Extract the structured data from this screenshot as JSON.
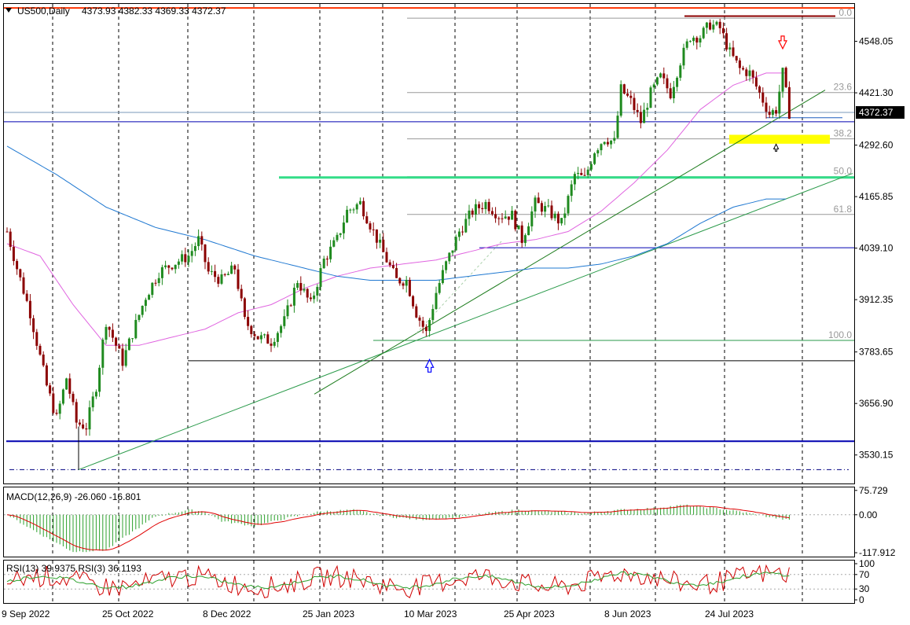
{
  "header": {
    "arrow_icon": "triangle-down-icon",
    "symbol": "US500,Daily",
    "ohlc": "4373.93 4382.33 4369.33 4372.37"
  },
  "colors": {
    "background": "#ffffff",
    "bull": "#1f8a1f",
    "bear": "#8b0000",
    "ma_fast": "#e064e0",
    "ma_slow": "#1f78d1",
    "fib": "#999999",
    "macd_hist": "#2ca02c",
    "macd_signal": "#e00000",
    "rsi_fast": "#d00000",
    "rsi_slow": "#2ca02c",
    "highlight": "#ffff00",
    "support_line": "#0000b0",
    "green_level": "#33dd88",
    "red_top": "#ff3300"
  },
  "chart_data": [
    {
      "type": "candlestick",
      "panel": "price",
      "symbol": "US500",
      "timeframe": "Daily",
      "ylim": [
        3460,
        4640
      ],
      "yticks": [
        {
          "value": 4548.05,
          "label": "4548.05"
        },
        {
          "value": 4421.3,
          "label": "4421.30"
        },
        {
          "value": 4292.6,
          "label": "4292.60"
        },
        {
          "value": 4165.85,
          "label": "4165.85"
        },
        {
          "value": 4039.1,
          "label": "4039.10"
        },
        {
          "value": 3912.35,
          "label": "3912.35"
        },
        {
          "value": 3783.65,
          "label": "3783.65"
        },
        {
          "value": 3656.9,
          "label": "3656.90"
        },
        {
          "value": 3530.15,
          "label": "3530.15"
        }
      ],
      "last_price": "4372.37",
      "xticks": [
        "9 Sep 2022",
        "25 Oct 2022",
        "8 Dec 2022",
        "25 Jan 2023",
        "10 Mar 2023",
        "25 Apr 2023",
        "8 Jun 2023",
        "24 Jul 2023"
      ],
      "grid": "vertical dashed",
      "close_path": [
        [
          0,
          4080
        ],
        [
          3,
          3990
        ],
        [
          7,
          3880
        ],
        [
          12,
          3700
        ],
        [
          15,
          3620
        ],
        [
          18,
          3720
        ],
        [
          21,
          3610
        ],
        [
          24,
          3600
        ],
        [
          27,
          3700
        ],
        [
          30,
          3860
        ],
        [
          35,
          3760
        ],
        [
          38,
          3830
        ],
        [
          42,
          3920
        ],
        [
          46,
          3980
        ],
        [
          50,
          4000
        ],
        [
          55,
          4020
        ],
        [
          58,
          4060
        ],
        [
          61,
          3980
        ],
        [
          65,
          3960
        ],
        [
          69,
          3990
        ],
        [
          72,
          3860
        ],
        [
          76,
          3820
        ],
        [
          80,
          3810
        ],
        [
          84,
          3860
        ],
        [
          88,
          3960
        ],
        [
          92,
          3900
        ],
        [
          96,
          4010
        ],
        [
          100,
          4060
        ],
        [
          103,
          4130
        ],
        [
          107,
          4150
        ],
        [
          111,
          4080
        ],
        [
          115,
          4010
        ],
        [
          118,
          3960
        ],
        [
          121,
          3960
        ],
        [
          124,
          3880
        ],
        [
          127,
          3830
        ],
        [
          130,
          3930
        ],
        [
          133,
          4000
        ],
        [
          137,
          4080
        ],
        [
          141,
          4130
        ],
        [
          145,
          4150
        ],
        [
          149,
          4120
        ],
        [
          153,
          4120
        ],
        [
          156,
          4060
        ],
        [
          160,
          4150
        ],
        [
          164,
          4130
        ],
        [
          168,
          4100
        ],
        [
          172,
          4220
        ],
        [
          175,
          4210
        ],
        [
          178,
          4280
        ],
        [
          181,
          4310
        ],
        [
          184,
          4300
        ],
        [
          186,
          4430
        ],
        [
          189,
          4400
        ],
        [
          192,
          4350
        ],
        [
          195,
          4420
        ],
        [
          198,
          4460
        ],
        [
          201,
          4420
        ],
        [
          204,
          4500
        ],
        [
          207,
          4560
        ],
        [
          210,
          4560
        ],
        [
          213,
          4590
        ],
        [
          216,
          4580
        ],
        [
          219,
          4520
        ],
        [
          222,
          4480
        ],
        [
          225,
          4470
        ],
        [
          228,
          4420
        ],
        [
          231,
          4370
        ],
        [
          233,
          4380
        ],
        [
          235,
          4470
        ],
        [
          237,
          4372
        ]
      ],
      "indicators": [
        {
          "name": "MA-fast",
          "color": "#e064e0",
          "path": [
            [
              0,
              4050
            ],
            [
              10,
              4020
            ],
            [
              20,
              3900
            ],
            [
              30,
              3800
            ],
            [
              40,
              3800
            ],
            [
              50,
              3820
            ],
            [
              60,
              3840
            ],
            [
              70,
              3880
            ],
            [
              80,
              3900
            ],
            [
              90,
              3940
            ],
            [
              100,
              3970
            ],
            [
              110,
              3990
            ],
            [
              120,
              4000
            ],
            [
              130,
              4010
            ],
            [
              140,
              4030
            ],
            [
              150,
              4050
            ],
            [
              160,
              4060
            ],
            [
              170,
              4080
            ],
            [
              180,
              4130
            ],
            [
              190,
              4200
            ],
            [
              200,
              4280
            ],
            [
              210,
              4380
            ],
            [
              220,
              4440
            ],
            [
              230,
              4470
            ],
            [
              236,
              4470
            ]
          ]
        },
        {
          "name": "MA-slow",
          "color": "#1f78d1",
          "path": [
            [
              0,
              4290
            ],
            [
              15,
              4220
            ],
            [
              30,
              4140
            ],
            [
              45,
              4090
            ],
            [
              60,
              4060
            ],
            [
              75,
              4020
            ],
            [
              90,
              3990
            ],
            [
              100,
              3970
            ],
            [
              110,
              3960
            ],
            [
              120,
              3960
            ],
            [
              130,
              3960
            ],
            [
              140,
              3970
            ],
            [
              150,
              3980
            ],
            [
              160,
              3990
            ],
            [
              170,
              3990
            ],
            [
              180,
              4000
            ],
            [
              190,
              4020
            ],
            [
              200,
              4050
            ],
            [
              210,
              4100
            ],
            [
              220,
              4140
            ],
            [
              230,
              4160
            ],
            [
              236,
              4160
            ]
          ]
        }
      ],
      "fibonacci": [
        {
          "label": "0.0",
          "value": 4605
        },
        {
          "label": "23.6",
          "value": 4422
        },
        {
          "label": "38.2",
          "value": 4308
        },
        {
          "label": "50.0",
          "value": 4215
        },
        {
          "label": "61.8",
          "value": 4122
        },
        {
          "label": "100.0",
          "value": 3812
        }
      ],
      "levels": [
        {
          "name": "resistance-red-top",
          "value": 4630,
          "color": "#ff3300"
        },
        {
          "name": "recent-high",
          "value": 4610,
          "color": "#8b0000"
        },
        {
          "name": "green-level",
          "value": 4213,
          "color": "#33dd88"
        },
        {
          "name": "blue-level-upper",
          "value": 4350,
          "color": "#0000b0"
        },
        {
          "name": "navy-level",
          "value": 4040,
          "color": "#0000b0"
        },
        {
          "name": "low-level",
          "value": 3762,
          "color": "#000000"
        },
        {
          "name": "support-blue",
          "value": 3564,
          "color": "#0000b0"
        },
        {
          "name": "dash-dot-bottom",
          "value": 3494,
          "color": "#000080"
        }
      ],
      "annotations": [
        {
          "type": "arrow-up",
          "color": "#0000ff",
          "at": [
            128,
            3765
          ]
        },
        {
          "type": "arrow-down",
          "color": "#ff0000",
          "at": [
            235,
            4530
          ]
        },
        {
          "type": "arrow-up-small",
          "color": "#000000",
          "at": [
            233,
            4295
          ]
        }
      ]
    },
    {
      "type": "histogram+line",
      "panel": "macd",
      "label": "MACD(12,26,9) -26.060 -16.801",
      "ylim": [
        -130,
        85
      ],
      "yticks": [
        "75.729",
        "0.00",
        "-117.912"
      ]
    },
    {
      "type": "line",
      "panel": "rsi",
      "label": "RSI(13) 39.9375  RSI(3) 36.1193",
      "ylim": [
        0,
        100
      ],
      "yticks": [
        "100",
        "70",
        "30",
        "0"
      ]
    }
  ]
}
